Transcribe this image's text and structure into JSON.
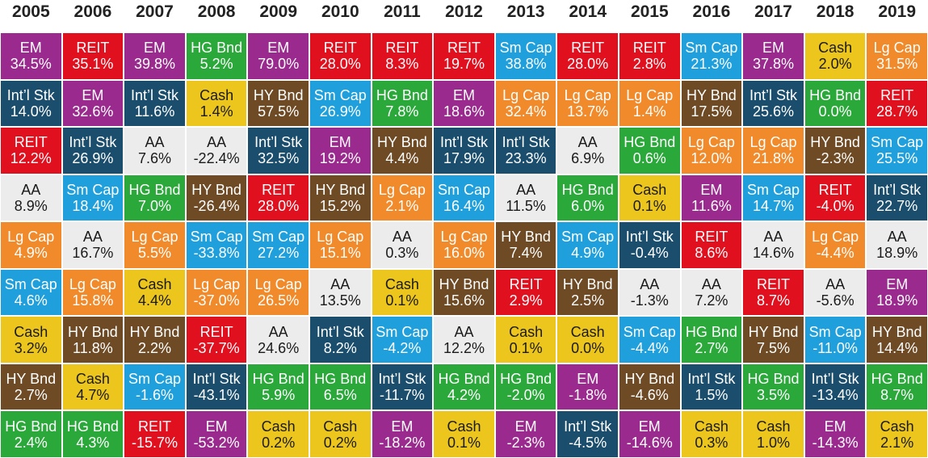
{
  "chart_data": {
    "type": "table",
    "years": [
      "2005",
      "2006",
      "2007",
      "2008",
      "2009",
      "2010",
      "2011",
      "2012",
      "2013",
      "2014",
      "2015",
      "2016",
      "2017",
      "2018",
      "2019"
    ],
    "asset_colors": {
      "EM": "#9a2a8e",
      "REIT": "#e0101f",
      "HG Bnd": "#2aa83a",
      "Cash": "#ecc61c",
      "Lg Cap": "#f08a2a",
      "Int'l Stk": "#1b4d6d",
      "Sm Cap": "#1fa0dc",
      "HY Bnd": "#6e4a25",
      "AA": "#ececec"
    },
    "dark_text_assets": [
      "Cash",
      "AA"
    ],
    "columns": [
      [
        {
          "asset": "EM",
          "label": "EM",
          "value": "34.5%"
        },
        {
          "asset": "Int'l Stk",
          "label": "Int’l Stk",
          "value": "14.0%"
        },
        {
          "asset": "REIT",
          "label": "REIT",
          "value": "12.2%"
        },
        {
          "asset": "AA",
          "label": "AA",
          "value": "8.9%"
        },
        {
          "asset": "Lg Cap",
          "label": "Lg Cap",
          "value": "4.9%"
        },
        {
          "asset": "Sm Cap",
          "label": "Sm Cap",
          "value": "4.6%"
        },
        {
          "asset": "Cash",
          "label": "Cash",
          "value": "3.2%"
        },
        {
          "asset": "HY Bnd",
          "label": "HY Bnd",
          "value": "2.7%"
        },
        {
          "asset": "HG Bnd",
          "label": "HG Bnd",
          "value": "2.4%"
        }
      ],
      [
        {
          "asset": "REIT",
          "label": "REIT",
          "value": "35.1%"
        },
        {
          "asset": "EM",
          "label": "EM",
          "value": "32.6%"
        },
        {
          "asset": "Int'l Stk",
          "label": "Int’l Stk",
          "value": "26.9%"
        },
        {
          "asset": "Sm Cap",
          "label": "Sm Cap",
          "value": "18.4%"
        },
        {
          "asset": "AA",
          "label": "AA",
          "value": "16.7%"
        },
        {
          "asset": "Lg Cap",
          "label": "Lg Cap",
          "value": "15.8%"
        },
        {
          "asset": "HY Bnd",
          "label": "HY Bnd",
          "value": "11.8%"
        },
        {
          "asset": "Cash",
          "label": "Cash",
          "value": "4.7%"
        },
        {
          "asset": "HG Bnd",
          "label": "HG Bnd",
          "value": "4.3%"
        }
      ],
      [
        {
          "asset": "EM",
          "label": "EM",
          "value": "39.8%"
        },
        {
          "asset": "Int'l Stk",
          "label": "Int’l Stk",
          "value": "11.6%"
        },
        {
          "asset": "AA",
          "label": "AA",
          "value": "7.6%"
        },
        {
          "asset": "HG Bnd",
          "label": "HG Bnd",
          "value": "7.0%"
        },
        {
          "asset": "Lg Cap",
          "label": "Lg Cap",
          "value": "5.5%"
        },
        {
          "asset": "Cash",
          "label": "Cash",
          "value": "4.4%"
        },
        {
          "asset": "HY Bnd",
          "label": "HY Bnd",
          "value": "2.2%"
        },
        {
          "asset": "Sm Cap",
          "label": "Sm Cap",
          "value": "-1.6%"
        },
        {
          "asset": "REIT",
          "label": "REIT",
          "value": "-15.7%"
        }
      ],
      [
        {
          "asset": "HG Bnd",
          "label": "HG Bnd",
          "value": "5.2%"
        },
        {
          "asset": "Cash",
          "label": "Cash",
          "value": "1.4%"
        },
        {
          "asset": "AA",
          "label": "AA",
          "value": "-22.4%"
        },
        {
          "asset": "HY Bnd",
          "label": "HY Bnd",
          "value": "-26.4%"
        },
        {
          "asset": "Sm Cap",
          "label": "Sm Cap",
          "value": "-33.8%"
        },
        {
          "asset": "Lg Cap",
          "label": "Lg Cap",
          "value": "-37.0%"
        },
        {
          "asset": "REIT",
          "label": "REIT",
          "value": "-37.7%"
        },
        {
          "asset": "Int'l Stk",
          "label": "Int’l Stk",
          "value": "-43.1%"
        },
        {
          "asset": "EM",
          "label": "EM",
          "value": "-53.2%"
        }
      ],
      [
        {
          "asset": "EM",
          "label": "EM",
          "value": "79.0%"
        },
        {
          "asset": "HY Bnd",
          "label": "HY Bnd",
          "value": "57.5%"
        },
        {
          "asset": "Int'l Stk",
          "label": "Int’l Stk",
          "value": "32.5%"
        },
        {
          "asset": "REIT",
          "label": "REIT",
          "value": "28.0%"
        },
        {
          "asset": "Sm Cap",
          "label": "Sm Cap",
          "value": "27.2%"
        },
        {
          "asset": "Lg Cap",
          "label": "Lg Cap",
          "value": "26.5%"
        },
        {
          "asset": "AA",
          "label": "AA",
          "value": "24.6%"
        },
        {
          "asset": "HG Bnd",
          "label": "HG Bnd",
          "value": "5.9%"
        },
        {
          "asset": "Cash",
          "label": "Cash",
          "value": "0.2%"
        }
      ],
      [
        {
          "asset": "REIT",
          "label": "REIT",
          "value": "28.0%"
        },
        {
          "asset": "Sm Cap",
          "label": "Sm Cap",
          "value": "26.9%"
        },
        {
          "asset": "EM",
          "label": "EM",
          "value": "19.2%"
        },
        {
          "asset": "HY Bnd",
          "label": "HY Bnd",
          "value": "15.2%"
        },
        {
          "asset": "Lg Cap",
          "label": "Lg Cap",
          "value": "15.1%"
        },
        {
          "asset": "AA",
          "label": "AA",
          "value": "13.5%"
        },
        {
          "asset": "Int'l Stk",
          "label": "Int’l Stk",
          "value": "8.2%"
        },
        {
          "asset": "HG Bnd",
          "label": "HG Bnd",
          "value": "6.5%"
        },
        {
          "asset": "Cash",
          "label": "Cash",
          "value": "0.2%"
        }
      ],
      [
        {
          "asset": "REIT",
          "label": "REIT",
          "value": "8.3%"
        },
        {
          "asset": "HG Bnd",
          "label": "HG Bnd",
          "value": "7.8%"
        },
        {
          "asset": "HY Bnd",
          "label": "HY Bnd",
          "value": "4.4%"
        },
        {
          "asset": "Lg Cap",
          "label": "Lg Cap",
          "value": "2.1%"
        },
        {
          "asset": "AA",
          "label": "AA",
          "value": "0.3%"
        },
        {
          "asset": "Cash",
          "label": "Cash",
          "value": "0.1%"
        },
        {
          "asset": "Sm Cap",
          "label": "Sm Cap",
          "value": "-4.2%"
        },
        {
          "asset": "Int'l Stk",
          "label": "Int’l Stk",
          "value": "-11.7%"
        },
        {
          "asset": "EM",
          "label": "EM",
          "value": "-18.2%"
        }
      ],
      [
        {
          "asset": "REIT",
          "label": "REIT",
          "value": "19.7%"
        },
        {
          "asset": "EM",
          "label": "EM",
          "value": "18.6%"
        },
        {
          "asset": "Int'l Stk",
          "label": "Int’l Stk",
          "value": "17.9%"
        },
        {
          "asset": "Sm Cap",
          "label": "Sm Cap",
          "value": "16.4%"
        },
        {
          "asset": "Lg Cap",
          "label": "Lg Cap",
          "value": "16.0%"
        },
        {
          "asset": "HY Bnd",
          "label": "HY Bnd",
          "value": "15.6%"
        },
        {
          "asset": "AA",
          "label": "AA",
          "value": "12.2%"
        },
        {
          "asset": "HG Bnd",
          "label": "HG Bnd",
          "value": "4.2%"
        },
        {
          "asset": "Cash",
          "label": "Cash",
          "value": "0.1%"
        }
      ],
      [
        {
          "asset": "Sm Cap",
          "label": "Sm Cap",
          "value": "38.8%"
        },
        {
          "asset": "Lg Cap",
          "label": "Lg Cap",
          "value": "32.4%"
        },
        {
          "asset": "Int'l Stk",
          "label": "Int’l Stk",
          "value": "23.3%"
        },
        {
          "asset": "AA",
          "label": "AA",
          "value": "11.5%"
        },
        {
          "asset": "HY Bnd",
          "label": "HY Bnd",
          "value": "7.4%"
        },
        {
          "asset": "REIT",
          "label": "REIT",
          "value": "2.9%"
        },
        {
          "asset": "Cash",
          "label": "Cash",
          "value": "0.1%"
        },
        {
          "asset": "HG Bnd",
          "label": "HG Bnd",
          "value": "-2.0%"
        },
        {
          "asset": "EM",
          "label": "EM",
          "value": "-2.3%"
        }
      ],
      [
        {
          "asset": "REIT",
          "label": "REIT",
          "value": "28.0%"
        },
        {
          "asset": "Lg Cap",
          "label": "Lg Cap",
          "value": "13.7%"
        },
        {
          "asset": "AA",
          "label": "AA",
          "value": "6.9%"
        },
        {
          "asset": "HG Bnd",
          "label": "HG Bnd",
          "value": "6.0%"
        },
        {
          "asset": "Sm Cap",
          "label": "Sm Cap",
          "value": "4.9%"
        },
        {
          "asset": "HY Bnd",
          "label": "HY Bnd",
          "value": "2.5%"
        },
        {
          "asset": "Cash",
          "label": "Cash",
          "value": "0.0%"
        },
        {
          "asset": "EM",
          "label": "EM",
          "value": "-1.8%"
        },
        {
          "asset": "Int'l Stk",
          "label": "Int’l Stk",
          "value": "-4.5%"
        }
      ],
      [
        {
          "asset": "REIT",
          "label": "REIT",
          "value": "2.8%"
        },
        {
          "asset": "Lg Cap",
          "label": "Lg Cap",
          "value": "1.4%"
        },
        {
          "asset": "HG Bnd",
          "label": "HG Bnd",
          "value": "0.6%"
        },
        {
          "asset": "Cash",
          "label": "Cash",
          "value": "0.1%"
        },
        {
          "asset": "Int'l Stk",
          "label": "Int’l Stk",
          "value": "-0.4%"
        },
        {
          "asset": "AA",
          "label": "AA",
          "value": "-1.3%"
        },
        {
          "asset": "Sm Cap",
          "label": "Sm Cap",
          "value": "-4.4%"
        },
        {
          "asset": "HY Bnd",
          "label": "HY Bnd",
          "value": "-4.6%"
        },
        {
          "asset": "EM",
          "label": "EM",
          "value": "-14.6%"
        }
      ],
      [
        {
          "asset": "Sm Cap",
          "label": "Sm Cap",
          "value": "21.3%"
        },
        {
          "asset": "HY Bnd",
          "label": "HY Bnd",
          "value": "17.5%"
        },
        {
          "asset": "Lg Cap",
          "label": "Lg Cap",
          "value": "12.0%"
        },
        {
          "asset": "EM",
          "label": "EM",
          "value": "11.6%"
        },
        {
          "asset": "REIT",
          "label": "REIT",
          "value": "8.6%"
        },
        {
          "asset": "AA",
          "label": "AA",
          "value": "7.2%"
        },
        {
          "asset": "HG Bnd",
          "label": "HG Bnd",
          "value": "2.7%"
        },
        {
          "asset": "Int'l Stk",
          "label": "Int’l Stk",
          "value": "1.5%"
        },
        {
          "asset": "Cash",
          "label": "Cash",
          "value": "0.3%"
        }
      ],
      [
        {
          "asset": "EM",
          "label": "EM",
          "value": "37.8%"
        },
        {
          "asset": "Int'l Stk",
          "label": "Int’l Stk",
          "value": "25.6%"
        },
        {
          "asset": "Lg Cap",
          "label": "Lg Cap",
          "value": "21.8%"
        },
        {
          "asset": "Sm Cap",
          "label": "Sm Cap",
          "value": "14.7%"
        },
        {
          "asset": "AA",
          "label": "AA",
          "value": "14.6%"
        },
        {
          "asset": "REIT",
          "label": "REIT",
          "value": "8.7%"
        },
        {
          "asset": "HY Bnd",
          "label": "HY Bnd",
          "value": "7.5%"
        },
        {
          "asset": "HG Bnd",
          "label": "HG Bnd",
          "value": "3.5%"
        },
        {
          "asset": "Cash",
          "label": "Cash",
          "value": "1.0%"
        }
      ],
      [
        {
          "asset": "Cash",
          "label": "Cash",
          "value": "2.0%"
        },
        {
          "asset": "HG Bnd",
          "label": "HG Bnd",
          "value": "0.0%"
        },
        {
          "asset": "HY Bnd",
          "label": "HY Bnd",
          "value": "-2.3%"
        },
        {
          "asset": "REIT",
          "label": "REIT",
          "value": "-4.0%"
        },
        {
          "asset": "Lg Cap",
          "label": "Lg Cap",
          "value": "-4.4%"
        },
        {
          "asset": "AA",
          "label": "AA",
          "value": "-5.6%"
        },
        {
          "asset": "Sm Cap",
          "label": "Sm Cap",
          "value": "-11.0%"
        },
        {
          "asset": "Int'l Stk",
          "label": "Int’l Stk",
          "value": "-13.4%"
        },
        {
          "asset": "EM",
          "label": "EM",
          "value": "-14.3%"
        }
      ],
      [
        {
          "asset": "Lg Cap",
          "label": "Lg Cap",
          "value": "31.5%"
        },
        {
          "asset": "REIT",
          "label": "REIT",
          "value": "28.7%"
        },
        {
          "asset": "Sm Cap",
          "label": "Sm Cap",
          "value": "25.5%"
        },
        {
          "asset": "Int'l Stk",
          "label": "Int’l Stk",
          "value": "22.7%"
        },
        {
          "asset": "AA",
          "label": "AA",
          "value": "18.9%"
        },
        {
          "asset": "EM",
          "label": "EM",
          "value": "18.9%"
        },
        {
          "asset": "HY Bnd",
          "label": "HY Bnd",
          "value": "14.4%"
        },
        {
          "asset": "HG Bnd",
          "label": "HG Bnd",
          "value": "8.7%"
        },
        {
          "asset": "Cash",
          "label": "Cash",
          "value": "2.1%"
        }
      ]
    ]
  }
}
